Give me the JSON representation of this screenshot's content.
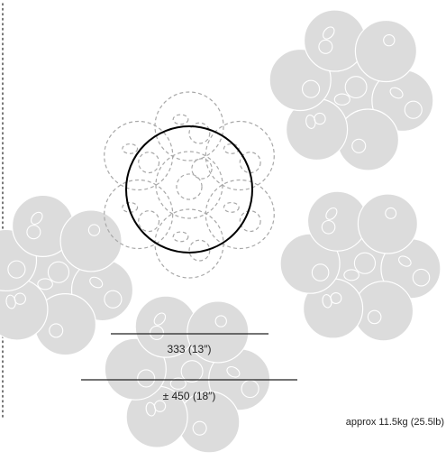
{
  "dimensions": {
    "inner_label": "333 (13″)",
    "outer_label": "± 450 (18″)"
  },
  "weight_label": "approx 11.5kg (25.5lb)",
  "colors": {
    "flower_fill": "#dcdcdc",
    "flower_outline": "#ffffff",
    "dashed_outline": "#a8a8a8",
    "circle_stroke": "#000000",
    "dim_line": "#222222",
    "text": "#222222",
    "border_dots": "#555555"
  },
  "icons": {
    "flower": "flower-cluster-icon",
    "dashed_flower": "dashed-flower-outline-icon"
  }
}
